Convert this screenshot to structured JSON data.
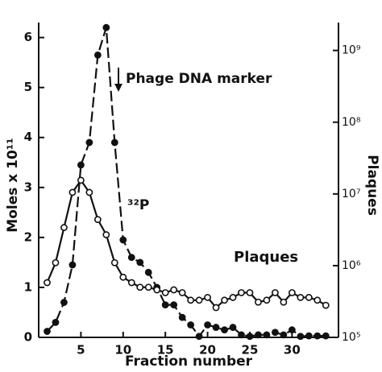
{
  "chart_data": {
    "type": "line",
    "x_label": "Fraction number",
    "y_label": "Moles x 10¹¹",
    "y2_label": "Plaques",
    "x": [
      1,
      2,
      3,
      4,
      5,
      6,
      7,
      8,
      9,
      10,
      11,
      12,
      13,
      14,
      15,
      16,
      17,
      18,
      19,
      20,
      21,
      22,
      23,
      24,
      25,
      26,
      27,
      28,
      29,
      30,
      31,
      32,
      33,
      34
    ],
    "xlim": [
      0,
      35.5
    ],
    "xticks": [
      5,
      10,
      15,
      20,
      25,
      30
    ],
    "ylim": [
      0,
      6.3
    ],
    "yticks": [
      0,
      1,
      2,
      3,
      4,
      5,
      6
    ],
    "y2lim": [
      100000,
      2450000000
    ],
    "y2log": true,
    "y2ticks": [
      {
        "value": 100000,
        "label": "10⁵"
      },
      {
        "value": 1000000,
        "label": "10⁶"
      },
      {
        "value": 10000000,
        "label": "10⁷"
      },
      {
        "value": 100000000,
        "label": "10⁸"
      },
      {
        "value": 1000000000,
        "label": "10⁹"
      }
    ],
    "series": [
      {
        "name": "³²P",
        "color": "#111111",
        "style": "dashed",
        "marker": "filled",
        "values": [
          0.12,
          0.3,
          0.7,
          1.45,
          3.45,
          3.9,
          5.65,
          6.2,
          3.9,
          1.95,
          1.6,
          1.5,
          1.3,
          1.0,
          0.65,
          0.65,
          0.4,
          0.25,
          0.02,
          0.25,
          0.2,
          0.15,
          0.2,
          0.05,
          0.02,
          0.05,
          0.05,
          0.1,
          0.05,
          0.15,
          0.02,
          0.03,
          0.03,
          0.03
        ]
      },
      {
        "name": "Plaques",
        "color": "#111111",
        "style": "solid",
        "marker": "open",
        "axis": "y2",
        "values": [
          580000,
          1100000,
          3400000,
          10500000,
          15500000,
          10500000,
          4400000,
          2700000,
          1100000,
          690000,
          580000,
          500000,
          500000,
          460000,
          420000,
          460000,
          420000,
          330000,
          330000,
          360000,
          260000,
          330000,
          360000,
          420000,
          420000,
          310000,
          330000,
          420000,
          310000,
          420000,
          360000,
          360000,
          330000,
          280000
        ]
      }
    ],
    "annotation": "Phage DNA marker"
  }
}
